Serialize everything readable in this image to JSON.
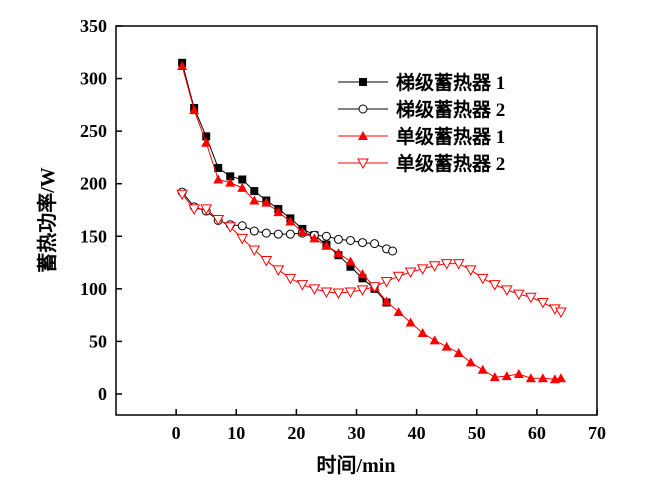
{
  "chart_data": {
    "type": "line",
    "title": "",
    "xlabel": "时间/min",
    "ylabel": "蓄热功率/W",
    "xlim": [
      -10,
      70
    ],
    "ylim": [
      -20,
      350
    ],
    "xticks": [
      0,
      10,
      20,
      30,
      40,
      50,
      60,
      70
    ],
    "yticks": [
      0,
      50,
      100,
      150,
      200,
      250,
      300,
      350
    ],
    "grid": false,
    "legend_position": "top-right",
    "series": [
      {
        "name": "梯级蓄热器 1",
        "color": "#000000",
        "marker": "filled-square",
        "x": [
          1,
          3,
          5,
          7,
          9,
          11,
          13,
          15,
          17,
          19,
          21,
          23,
          25,
          27,
          29,
          31,
          33,
          35
        ],
        "y": [
          315,
          272,
          245,
          215,
          207,
          204,
          193,
          184,
          176,
          167,
          157,
          151,
          142,
          132,
          121,
          110,
          100,
          87
        ]
      },
      {
        "name": "梯级蓄热器 2",
        "color": "#000000",
        "marker": "hollow-circle",
        "x": [
          1,
          3,
          5,
          7,
          9,
          11,
          13,
          15,
          17,
          19,
          21,
          23,
          25,
          27,
          29,
          31,
          33,
          35,
          36
        ],
        "y": [
          192,
          178,
          174,
          165,
          161,
          160,
          155,
          153,
          152,
          152,
          153,
          151,
          150,
          147,
          146,
          144,
          143,
          138,
          136
        ]
      },
      {
        "name": "单级蓄热器 1",
        "color": "#ff0000",
        "marker": "filled-triangle-up",
        "x": [
          1,
          3,
          5,
          7,
          9,
          11,
          13,
          15,
          17,
          19,
          21,
          23,
          25,
          27,
          29,
          31,
          33,
          35,
          37,
          39,
          41,
          43,
          45,
          47,
          49,
          51,
          53,
          55,
          57,
          59,
          61,
          63,
          64
        ],
        "y": [
          312,
          270,
          239,
          204,
          201,
          196,
          184,
          182,
          173,
          164,
          154,
          148,
          141,
          134,
          126,
          114,
          102,
          88,
          78,
          68,
          58,
          51,
          45,
          39,
          30,
          23,
          16,
          17,
          19,
          15,
          15,
          14,
          15
        ]
      },
      {
        "name": "单级蓄热器 2",
        "color": "#ff0000",
        "marker": "hollow-triangle-down",
        "x": [
          1,
          3,
          5,
          7,
          9,
          11,
          13,
          15,
          17,
          19,
          21,
          23,
          25,
          27,
          29,
          31,
          33,
          35,
          37,
          39,
          41,
          43,
          45,
          47,
          49,
          51,
          53,
          55,
          57,
          59,
          61,
          63,
          64
        ],
        "y": [
          190,
          176,
          176,
          166,
          159,
          148,
          137,
          127,
          118,
          110,
          104,
          100,
          97,
          96,
          97,
          99,
          102,
          107,
          112,
          116,
          119,
          122,
          124,
          124,
          118,
          110,
          104,
          99,
          95,
          92,
          87,
          81,
          78
        ]
      }
    ]
  }
}
